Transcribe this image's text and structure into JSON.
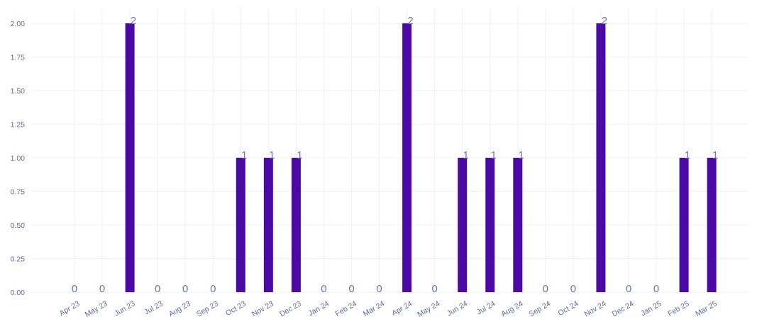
{
  "chart_data": {
    "type": "bar",
    "categories": [
      "Apr 23",
      "May 23",
      "Jun 23",
      "Jul 23",
      "Aug 23",
      "Sep 23",
      "Oct 23",
      "Nov 23",
      "Dec 23",
      "Jan 24",
      "Feb 24",
      "Mar 24",
      "Apr 24",
      "May 24",
      "Jun 24",
      "Jul 24",
      "Aug 24",
      "Sep 24",
      "Oct 24",
      "Nov 24",
      "Dec 24",
      "Jan 25",
      "Feb 25",
      "Mar 25"
    ],
    "values": [
      0,
      0,
      2,
      0,
      0,
      0,
      1,
      1,
      1,
      0,
      0,
      0,
      2,
      0,
      1,
      1,
      1,
      0,
      0,
      2,
      0,
      0,
      1,
      1
    ],
    "data_labels": [
      "0",
      "0",
      "2",
      "0",
      "0",
      "0",
      "1",
      "1",
      "1",
      "0",
      "0",
      "0",
      "2",
      "0",
      "1",
      "1",
      "1",
      "0",
      "0",
      "2",
      "0",
      "0",
      "1",
      "1"
    ],
    "y_ticks": [
      "0.00",
      "0.25",
      "0.50",
      "0.75",
      "1.00",
      "1.25",
      "1.50",
      "1.75",
      "2.00"
    ],
    "ylim": [
      0,
      2.1
    ],
    "title": "",
    "xlabel": "",
    "ylabel": "",
    "grid": true,
    "bar_color": "#4b0aa6",
    "label_color": "#6a78a8",
    "tick_color": "#5c6a9c"
  }
}
